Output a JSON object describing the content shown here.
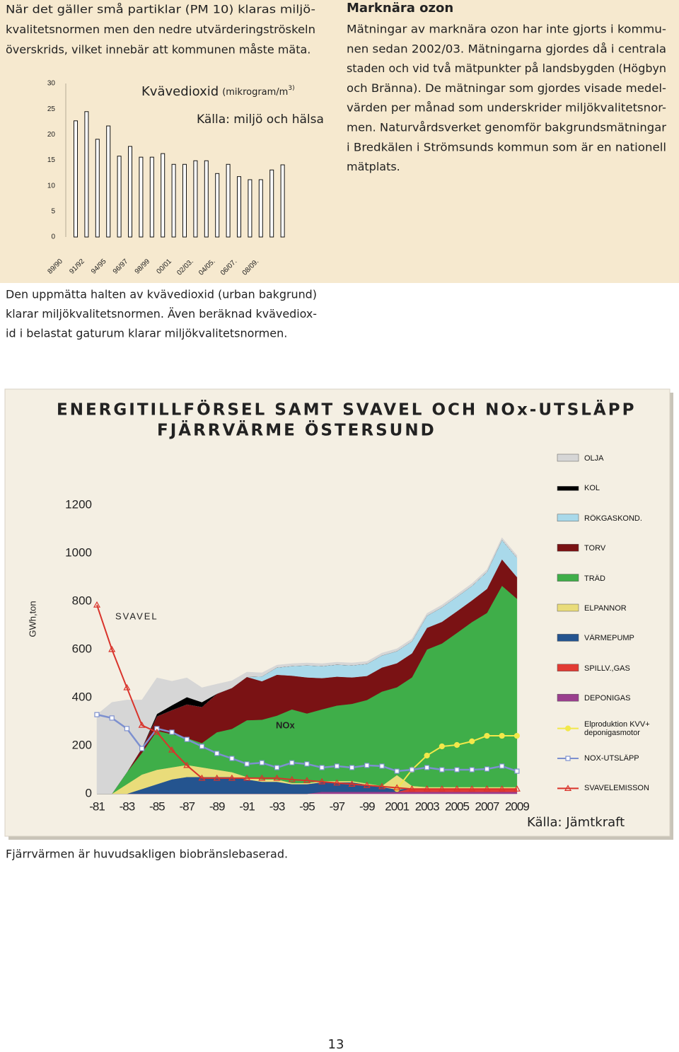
{
  "intro": {
    "lines": [
      "När det gäller små partiklar (PM 10) klaras miljö-",
      "kvalitetsnormen men den nedre utvärderingströskeln",
      "överskrids, vilket innebär att kommunen måste mäta."
    ]
  },
  "ozone": {
    "heading": "Marknära ozon",
    "lines": [
      "Mätningar av marknära ozon har inte gjorts i kommu-",
      "nen sedan 2002/03. Mätningarna gjordes då i centrala",
      "staden och vid två mätpunkter på landsbygden (Högbyn",
      "och Bränna). De mätningar som gjordes visade medel-",
      "värden per månad som underskrider miljökvalitetsnor-",
      "men. Naturvårdsverket genomför bakgrundsmätningar",
      "i Bredkälen i Strömsunds kommun som är en nationell",
      "mätplats."
    ]
  },
  "no2_text": {
    "lines": [
      "Den uppmätta halten av kvävedioxid (urban bakgrund)",
      "klarar miljökvalitetsnormen. Även beräknad kvävediox-",
      "id i belastat gaturum klarar miljökvalitetsnormen."
    ]
  },
  "district_heating_text": {
    "lines": [
      "Fjärrvärmen är huvudsakligen biobränslebaserad."
    ]
  },
  "page_number": "13",
  "chart_data": [
    {
      "type": "bar",
      "title": "Kvävedioxid",
      "title_unit": "(mikrogram/m",
      "title_unit_sup": "3)",
      "source": "Källa: miljö och hälsa",
      "categories": [
        "89/90",
        null,
        "91/92",
        null,
        "94/95",
        null,
        "96/97",
        null,
        "98/99",
        null,
        "00/01",
        null,
        "02/03.",
        null,
        "04/05.",
        null,
        "06/07.",
        null,
        "08/09.",
        null
      ],
      "values": [
        22.7,
        24.5,
        19.1,
        21.7,
        15.8,
        17.7,
        15.6,
        15.6,
        16.3,
        14.2,
        14.2,
        14.9,
        14.9,
        12.4,
        14.2,
        11.8,
        11.2,
        11.2,
        13.1,
        14.1
      ],
      "color": "#ffffff",
      "ylim": [
        0,
        30
      ],
      "yticks": [
        0,
        5,
        10,
        15,
        20,
        25,
        30
      ]
    },
    {
      "type": "area",
      "title": [
        "ENERGITILLFÖRSEL SAMT SVAVEL OCH NOx-UTSLÄPP",
        "FJÄRRVÄRME ÖSTERSUND"
      ],
      "y_label": "GWh,ton",
      "source": "Källa: Jämtkraft",
      "annotations": [
        "SVAVEL",
        "NOx"
      ],
      "categories": [
        "-81",
        null,
        "-83",
        null,
        "-85",
        null,
        "-87",
        null,
        "-89",
        null,
        "-91",
        null,
        "-93",
        null,
        "-95",
        null,
        "-97",
        null,
        "-99",
        null,
        "2001",
        null,
        "2003",
        null,
        "2005",
        null,
        "2007",
        null,
        "2009"
      ],
      "ylim": [
        0,
        1300
      ],
      "yticks": [
        0,
        200,
        400,
        600,
        800,
        1000,
        1200
      ],
      "series": [
        {
          "name": "OLJA",
          "type": "area",
          "color": "#d6d6d6",
          "values": [
            329,
            380,
            300,
            200,
            150,
            100,
            80,
            60,
            40,
            30,
            20,
            15,
            10,
            10,
            10,
            10,
            10,
            10,
            10,
            10,
            10,
            10,
            10,
            10,
            10,
            10,
            10,
            10,
            10
          ]
        },
        {
          "name": "KOL",
          "type": "area",
          "color": "#000000",
          "values": [
            0,
            0,
            0,
            0,
            10,
            20,
            30,
            20,
            0,
            0,
            0,
            0,
            0,
            0,
            0,
            0,
            0,
            0,
            0,
            0,
            0,
            0,
            0,
            0,
            0,
            0,
            0,
            0,
            0
          ]
        },
        {
          "name": "RÖKGASKOND.",
          "type": "area",
          "color": "#a9d9ea",
          "values": [
            0,
            0,
            0,
            0,
            0,
            0,
            0,
            0,
            0,
            0,
            0,
            20,
            30,
            40,
            50,
            50,
            50,
            50,
            50,
            50,
            50,
            50,
            50,
            60,
            60,
            60,
            70,
            80,
            80
          ]
        },
        {
          "name": "TORV",
          "type": "area",
          "color": "#7a1214",
          "values": [
            0,
            0,
            0,
            20,
            60,
            100,
            140,
            150,
            160,
            170,
            180,
            160,
            170,
            140,
            150,
            130,
            120,
            110,
            100,
            100,
            100,
            100,
            90,
            90,
            90,
            90,
            100,
            110,
            90
          ]
        },
        {
          "name": "TRÄD",
          "type": "area",
          "color": "#3fae49",
          "values": [
            0,
            0,
            50,
            90,
            162,
            138,
            112,
            101,
            156,
            180,
            236,
            248,
            265,
            306,
            289,
            298,
            314,
            321,
            347,
            392,
            365,
            451,
            572,
            597,
            641,
            686,
            724,
            837,
            783
          ]
        },
        {
          "name": "ELPANNOR",
          "type": "area",
          "color": "#e9dc7a",
          "values": [
            0,
            0,
            40,
            60,
            60,
            50,
            50,
            40,
            30,
            20,
            10,
            10,
            10,
            5,
            5,
            5,
            5,
            5,
            5,
            5,
            60,
            10,
            5,
            5,
            5,
            5,
            5,
            5,
            5
          ]
        },
        {
          "name": "VÄRMEPUMP",
          "type": "area",
          "color": "#24548f",
          "values": [
            0,
            0,
            0,
            20,
            40,
            60,
            70,
            70,
            70,
            70,
            60,
            50,
            50,
            40,
            40,
            40,
            40,
            40,
            30,
            20,
            10,
            0,
            0,
            0,
            0,
            0,
            0,
            0,
            0
          ]
        },
        {
          "name": "SPILLV.,GAS",
          "type": "area",
          "color": "#e23b33",
          "values": [
            0,
            0,
            0,
            0,
            0,
            0,
            0,
            0,
            0,
            0,
            0,
            0,
            0,
            0,
            0,
            0,
            0,
            0,
            0,
            0,
            0,
            15,
            15,
            15,
            15,
            15,
            15,
            15,
            15
          ]
        },
        {
          "name": "DEPONIGAS",
          "type": "area",
          "color": "#9a3f8e",
          "values": [
            0,
            0,
            0,
            0,
            0,
            0,
            0,
            0,
            0,
            0,
            0,
            0,
            0,
            0,
            0,
            8,
            8,
            8,
            8,
            8,
            8,
            8,
            8,
            8,
            8,
            8,
            8,
            8,
            8
          ]
        },
        {
          "name": "Elproduktion KVV+ deponigasmotor",
          "type": "line",
          "marker": "circle",
          "color": "#f2e84a",
          "values": [
            null,
            null,
            null,
            null,
            null,
            null,
            null,
            null,
            null,
            null,
            null,
            null,
            null,
            null,
            null,
            null,
            null,
            null,
            null,
            null,
            20,
            100,
            159,
            197,
            203,
            218,
            241,
            241,
            241
          ]
        },
        {
          "name": "NOX-UTSLÄPP",
          "type": "line",
          "marker": "square",
          "color": "#7d90cf",
          "values": [
            329,
            315,
            271,
            188,
            271,
            256,
            226,
            197,
            168,
            147,
            124,
            129,
            109,
            129,
            124,
            109,
            115,
            109,
            118,
            115,
            94,
            100,
            109,
            100,
            100,
            100,
            103,
            115,
            94
          ]
        },
        {
          "name": "SVAVELEMISSON",
          "type": "line",
          "marker": "triangle",
          "color": "#d9332b",
          "values": [
            785,
            600,
            441,
            285,
            256,
            182,
            118,
            65,
            65,
            65,
            65,
            65,
            65,
            59,
            55,
            50,
            45,
            40,
            35,
            30,
            25,
            20,
            20,
            20,
            20,
            20,
            20,
            20,
            20
          ]
        }
      ]
    }
  ]
}
